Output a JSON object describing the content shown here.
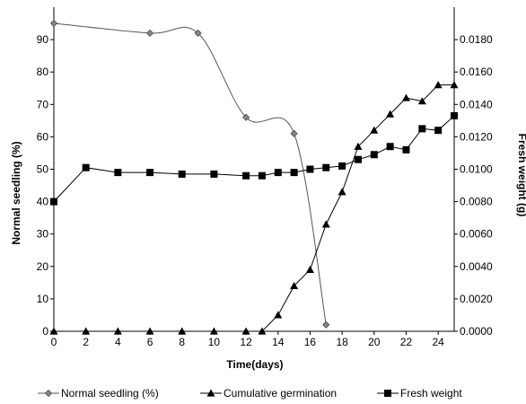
{
  "chart_data": {
    "type": "line",
    "title": "",
    "xlabel": "Time(days)",
    "ylabel": "Normal seedling (%)",
    "y2label": "Fresh weight (g)",
    "xlim": [
      0,
      25
    ],
    "ylim": [
      0,
      100
    ],
    "y2lim": [
      0,
      0.02
    ],
    "xticks": [
      "0",
      "2",
      "4",
      "6",
      "8",
      "10",
      "12",
      "14",
      "16",
      "18",
      "20",
      "22",
      "24"
    ],
    "yticks": [
      "0",
      "10",
      "20",
      "30",
      "40",
      "50",
      "60",
      "70",
      "80",
      "90"
    ],
    "y2ticks": [
      "0.0000",
      "0.0020",
      "0.0040",
      "0.0060",
      "0.0080",
      "0.0100",
      "0.0120",
      "0.0140",
      "0.0160",
      "0.0180"
    ],
    "grid": false,
    "legend_position": "bottom",
    "series": [
      {
        "name": "Normal seedling  (%)",
        "axis": "left",
        "marker": "diamond",
        "smooth": true,
        "color": "#555555",
        "x": [
          0,
          6,
          9,
          12,
          15,
          17
        ],
        "y": [
          95,
          92,
          92,
          66,
          61,
          2
        ]
      },
      {
        "name": "Cumulative germination",
        "axis": "left",
        "marker": "triangle",
        "smooth": false,
        "color": "#000000",
        "x": [
          0,
          2,
          4,
          6,
          8,
          10,
          12,
          13,
          14,
          15,
          16,
          17,
          18,
          19,
          20,
          21,
          22,
          23,
          24,
          25
        ],
        "y": [
          0,
          0,
          0,
          0,
          0,
          0,
          0,
          0,
          5,
          14,
          19,
          33,
          43,
          57,
          62,
          67,
          72,
          71,
          76,
          76
        ]
      },
      {
        "name": "Fresh weight",
        "axis": "right",
        "marker": "square",
        "smooth": false,
        "color": "#000000",
        "x": [
          0,
          2,
          4,
          6,
          8,
          10,
          12,
          13,
          14,
          15,
          16,
          17,
          18,
          19,
          20,
          21,
          22,
          23,
          24,
          25
        ],
        "y": [
          0.008,
          0.0101,
          0.0098,
          0.0098,
          0.0097,
          0.0097,
          0.0096,
          0.0096,
          0.0098,
          0.0098,
          0.01,
          0.0101,
          0.0102,
          0.0106,
          0.0109,
          0.0114,
          0.0112,
          0.0125,
          0.0124,
          0.0133
        ]
      }
    ]
  }
}
